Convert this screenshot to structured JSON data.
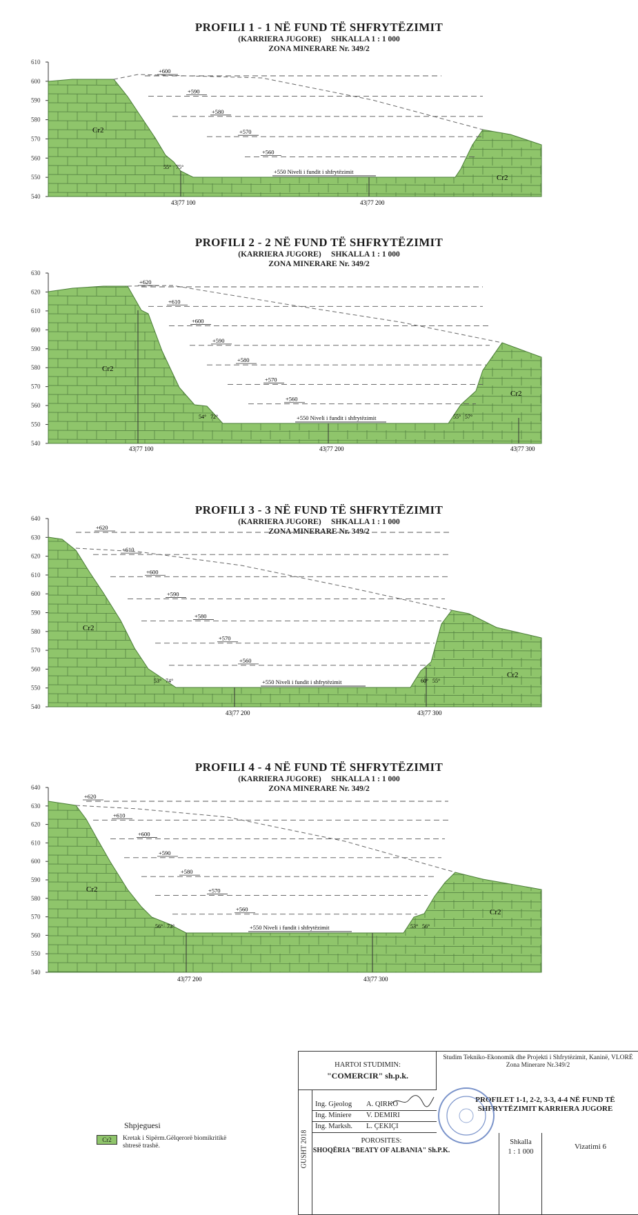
{
  "colors": {
    "rock": "#8fc56b",
    "rock_edge": "#4a7d37",
    "brick": "#4e7a3e",
    "bench_line": "#555555",
    "axis": "#333333"
  },
  "profiles": [
    {
      "title": "PROFILI 1 - 1 NË FUND TË SHFRYTËZIMIT",
      "subtitle": "(KARRIERA JUGORE)     SHKALLA 1 : 1 000",
      "zone": "ZONA MINERARE Nr. 349/2",
      "y_ticks": [
        "610",
        "600",
        "590",
        "580",
        "570",
        "560",
        "550",
        "540"
      ],
      "benches": [
        "+600",
        "+590",
        "+580",
        "+570",
        "+560"
      ],
      "bottom_label": "+550 Niveli i fundit i shfrytëzimit",
      "x_labels": [
        "43|77 100",
        "43|77 200"
      ],
      "rock_labels": [
        "Cr2",
        "Cr2"
      ],
      "angles": [
        "55°",
        "75°"
      ]
    },
    {
      "title": "PROFILI 2 - 2 NË FUND TË SHFRYTËZIMIT",
      "subtitle": "(KARRIERA JUGORE)     SHKALLA 1 : 1 000",
      "zone": "ZONA MINERARE Nr. 349/2",
      "y_ticks": [
        "630",
        "620",
        "610",
        "600",
        "590",
        "580",
        "570",
        "560",
        "550",
        "540"
      ],
      "benches": [
        "+620",
        "+610",
        "+600",
        "+590",
        "+580",
        "+570",
        "+560"
      ],
      "bottom_label": "+550 Niveli i fundit i shfrytëzimit",
      "x_labels": [
        "43|77 100",
        "43|77 200",
        "43|77 300"
      ],
      "rock_labels": [
        "Cr2",
        "Cr2"
      ],
      "angles": [
        "54°",
        "72°",
        "55°",
        "57°"
      ]
    },
    {
      "title": "PROFILI 3 - 3 NË FUND TË SHFRYTËZIMIT",
      "subtitle": "(KARRIERA JUGORE)     SHKALLA 1 : 1 000",
      "zone": "ZONA MINERARE Nr. 349/2",
      "y_ticks": [
        "640",
        "630",
        "620",
        "610",
        "600",
        "590",
        "580",
        "570",
        "560",
        "550",
        "540"
      ],
      "benches": [
        "+620",
        "+610",
        "+600",
        "+590",
        "+580",
        "+570",
        "+560"
      ],
      "bottom_label": "+550 Niveli i fundit i shfrytëzimit",
      "x_labels": [
        "43|77 200",
        "43|77 300"
      ],
      "rock_labels": [
        "Cr2",
        "Cr2"
      ],
      "angles": [
        "53°",
        "74°",
        "60°",
        "55°"
      ]
    },
    {
      "title": "PROFILI 4 - 4 NË FUND TË SHFRYTËZIMIT",
      "subtitle": "(KARRIERA JUGORE)     SHKALLA 1 : 1 000",
      "zone": "ZONA MINERARE Nr. 349/2",
      "y_ticks": [
        "640",
        "630",
        "620",
        "610",
        "600",
        "590",
        "580",
        "570",
        "560",
        "550",
        "540"
      ],
      "benches": [
        "+620",
        "+610",
        "+600",
        "+590",
        "+580",
        "+570",
        "+560"
      ],
      "bottom_label": "+550 Niveli i fundit i shfrytëzimit",
      "x_labels": [
        "43|77 200",
        "43|77 300"
      ],
      "rock_labels": [
        "Cr2",
        "Cr2"
      ],
      "angles": [
        "56°",
        "73°",
        "53°",
        "56°"
      ]
    }
  ],
  "legend": {
    "header": "Shpjeguesi",
    "symbol": "Cr2",
    "description": "Kretak i Sipërm.Gëlqerorë biomikritikë shtresë trashë."
  },
  "title_block": {
    "prepared_by_label": "HARTOI STUDIMIN:",
    "company": "\"COMERCIR\" sh.p.k.",
    "project": "Studim Tekniko-Ekonomik dhe Projekti i Shfrytëzimit, Kaninë, VLORË Zona Minerare Nr.349/2",
    "drawing_title": "PROFILET 1-1, 2-2, 3-3, 4-4 NË FUND TË SHFRYTËZIMIT KARRIERA JUGORE",
    "roles": [
      {
        "role": "Ing. Gjeolog",
        "name": "A. QIRKO"
      },
      {
        "role": "Ing. Miniere",
        "name": "V. DEMIRI"
      },
      {
        "role": "Ing. Marksh.",
        "name": "L. ÇEKIÇI"
      }
    ],
    "side_text": "GUSHT 2018",
    "client_label": "POROSITES:",
    "client": "SHOQËRIA \"BEATY OF ALBANIA\" Sh.P.K.",
    "scale_label": "Shkalla",
    "scale_value": "1 : 1 000",
    "sheet": "Vizatimi 6"
  }
}
